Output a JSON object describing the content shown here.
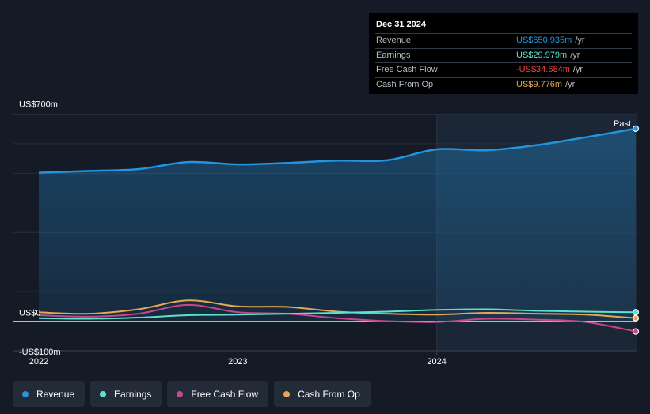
{
  "tooltip": {
    "date": "Dec 31 2024",
    "rows": [
      {
        "label": "Revenue",
        "value": "US$650.935m",
        "unit": "/yr",
        "color": "#2394df"
      },
      {
        "label": "Earnings",
        "value": "US$29.979m",
        "unit": "/yr",
        "color": "#5ce1d0"
      },
      {
        "label": "Free Cash Flow",
        "value": "-US$34.684m",
        "unit": "/yr",
        "color": "#ee4444"
      },
      {
        "label": "Cash From Op",
        "value": "US$9.776m",
        "unit": "/yr",
        "color": "#e3a857"
      }
    ]
  },
  "legend": [
    {
      "label": "Revenue",
      "color": "#2394df"
    },
    {
      "label": "Earnings",
      "color": "#5ce1d0"
    },
    {
      "label": "Free Cash Flow",
      "color": "#c8478b"
    },
    {
      "label": "Cash From Op",
      "color": "#e3a857"
    }
  ],
  "chart_data": {
    "type": "line",
    "y_tick_labels": [
      "US$700m",
      "US$0",
      "-US$100m"
    ],
    "ylim": [
      -100,
      700
    ],
    "x_tick_labels": [
      "2022",
      "2023",
      "2024"
    ],
    "x_ticks": [
      2022.0,
      2023.0,
      2024.0
    ],
    "xlim": [
      2021.87,
      2025.0
    ],
    "past_start": 2024.0,
    "past_label": "Past",
    "grid": true,
    "series": [
      {
        "name": "Revenue",
        "color": "#2394df",
        "fill": true,
        "x": [
          2022.0,
          2022.25,
          2022.5,
          2022.75,
          2023.0,
          2023.25,
          2023.5,
          2023.75,
          2024.0,
          2024.25,
          2024.5,
          2024.75,
          2025.0
        ],
        "y": [
          502,
          508,
          514,
          538,
          530,
          535,
          543,
          544,
          581,
          578,
          595,
          622,
          651
        ]
      },
      {
        "name": "Earnings",
        "color": "#5ce1d0",
        "fill": false,
        "x": [
          2022.0,
          2022.25,
          2022.5,
          2022.75,
          2023.0,
          2023.25,
          2023.5,
          2023.75,
          2024.0,
          2024.25,
          2024.5,
          2024.75,
          2025.0
        ],
        "y": [
          10,
          8,
          12,
          20,
          22,
          25,
          28,
          32,
          38,
          40,
          35,
          32,
          30
        ]
      },
      {
        "name": "Free Cash Flow",
        "color": "#c8478b",
        "fill": false,
        "x": [
          2022.0,
          2022.25,
          2022.5,
          2022.75,
          2023.0,
          2023.25,
          2023.5,
          2023.75,
          2024.0,
          2024.25,
          2024.5,
          2024.75,
          2025.0
        ],
        "y": [
          20,
          15,
          25,
          55,
          30,
          25,
          10,
          0,
          -3,
          8,
          5,
          -3,
          -35
        ]
      },
      {
        "name": "Cash From Op",
        "color": "#e3a857",
        "fill": false,
        "x": [
          2022.0,
          2022.25,
          2022.5,
          2022.75,
          2023.0,
          2023.25,
          2023.5,
          2023.75,
          2024.0,
          2024.25,
          2024.5,
          2024.75,
          2025.0
        ],
        "y": [
          30,
          25,
          40,
          70,
          50,
          48,
          32,
          25,
          22,
          28,
          25,
          22,
          10
        ]
      }
    ]
  }
}
